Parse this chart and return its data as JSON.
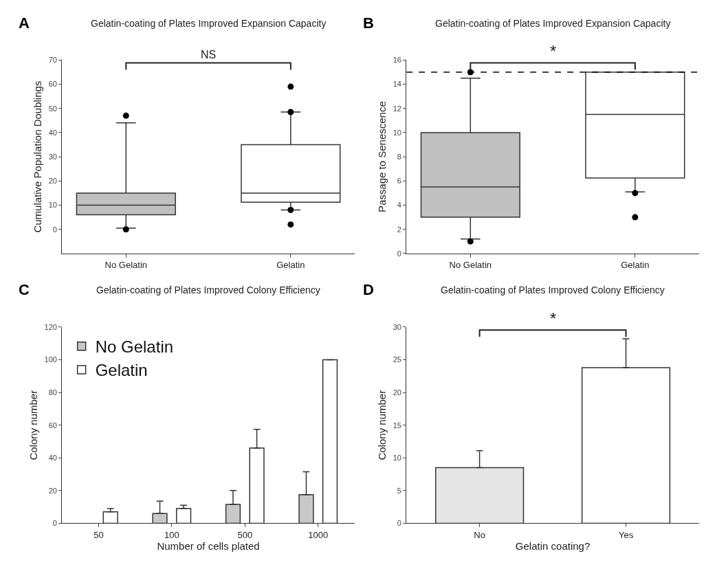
{
  "chart_data": [
    {
      "type": "box",
      "title": "Gelatin-coating of Plates Improved Expansion Capacity",
      "ylabel": "Cumulative Population Doublings",
      "categories": [
        "No Gelatin",
        "Gelatin"
      ],
      "colors": [
        "#c0c0c0",
        "#ffffff"
      ],
      "boxes": [
        {
          "low": 0.5,
          "q1": 6,
          "median": 10,
          "q3": 15,
          "high": 44,
          "outliers": [
            47,
            0
          ]
        },
        {
          "low": 8,
          "q1": 11.2,
          "median": 15,
          "q3": 35,
          "high": 48.5,
          "outliers": [
            59,
            48.5,
            8,
            2
          ]
        }
      ],
      "ylim": [
        -10,
        70
      ],
      "yticks": [
        0,
        10,
        20,
        30,
        40,
        50,
        60,
        70
      ],
      "annotations": [
        "A",
        "NS"
      ]
    },
    {
      "type": "box",
      "title": "Gelatin-coating of Plates Improved Expansion Capacity",
      "ylabel": "Passage to Senescence",
      "categories": [
        "No Gelatin",
        "Gelatin"
      ],
      "colors": [
        "#c0c0c0",
        "#ffffff"
      ],
      "boxes": [
        {
          "low": 1.2,
          "q1": 3,
          "median": 5.5,
          "q3": 10,
          "high": 14.5,
          "outliers": [
            15,
            1
          ]
        },
        {
          "low": 5.1,
          "q1": 6.25,
          "median": 11.5,
          "q3": 15,
          "high": 15,
          "outliers": [
            5,
            3
          ]
        }
      ],
      "ylim": [
        0,
        16
      ],
      "yticks": [
        0,
        2,
        4,
        6,
        8,
        10,
        12,
        14,
        16
      ],
      "ref_lines": [
        {
          "axis": "y",
          "value": 15,
          "color": "#000000",
          "line_style": "dashed"
        }
      ],
      "annotations": [
        "B",
        "*"
      ]
    },
    {
      "type": "bar",
      "title": "Gelatin-coating of Plates Improved Colony Efficiency",
      "xlabel": "Number of cells plated",
      "ylabel": "Colony number",
      "categories": [
        "50",
        "100",
        "500",
        "1000"
      ],
      "series": [
        {
          "name": "No Gelatin",
          "color": "#c8c8c8",
          "values": [
            null,
            6,
            11.5,
            17.5
          ],
          "errors": [
            null,
            [
              6,
              13.5
            ],
            [
              11.5,
              20
            ],
            [
              17.5,
              31.5
            ]
          ]
        },
        {
          "name": "Gelatin",
          "color": "#ffffff",
          "values": [
            7,
            9,
            46,
            100
          ],
          "errors": [
            [
              7,
              9
            ],
            [
              9,
              11
            ],
            [
              46,
              57.5
            ],
            null
          ]
        }
      ],
      "ylim": [
        0,
        120
      ],
      "yticks": [
        0,
        20,
        40,
        60,
        80,
        100,
        120
      ],
      "legend": "top left",
      "annotations": [
        "C"
      ]
    },
    {
      "type": "bar",
      "title": "Gelatin-coating of Plates Improved Colony Efficiency",
      "xlabel": "Gelatin coating?",
      "ylabel": "Colony number",
      "categories": [
        "No",
        "Yes"
      ],
      "values": [
        8.5,
        23.8
      ],
      "colors": [
        "#e6e6e6",
        "#ffffff"
      ],
      "errors": [
        [
          8.5,
          11.1
        ],
        [
          23.8,
          28.2
        ]
      ],
      "ylim": [
        0,
        30
      ],
      "yticks": [
        0,
        5,
        10,
        15,
        20,
        25,
        30
      ],
      "annotations": [
        "D",
        "*"
      ]
    }
  ]
}
